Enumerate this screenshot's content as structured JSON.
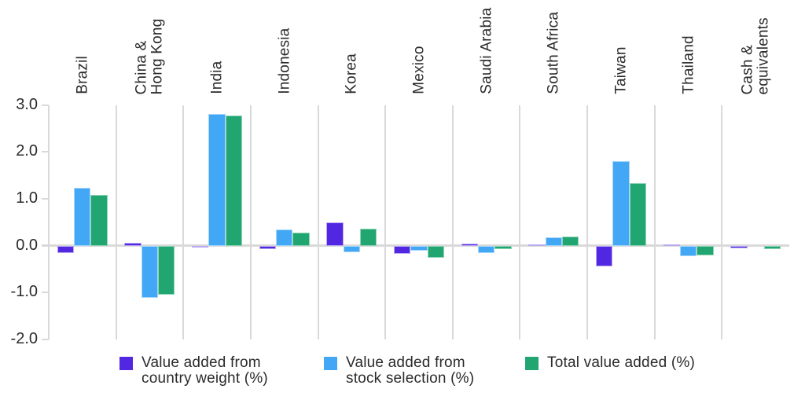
{
  "chart_data": {
    "type": "bar",
    "title": "",
    "xlabel": "",
    "ylabel": "",
    "categories": [
      "Brazil",
      "China &\nHong Kong",
      "India",
      "Indonesia",
      "Korea",
      "Mexico",
      "Saudi Arabia",
      "South Africa",
      "Taiwan",
      "Thailand",
      "Cash &\nequivalents"
    ],
    "series": [
      {
        "name": "Value added from\ncountry weight (%)",
        "color": "#5227e2",
        "edge_color": "#b9aaf2",
        "values": [
          -0.15,
          0.06,
          -0.03,
          -0.08,
          0.49,
          -0.18,
          0.05,
          0.03,
          -0.45,
          0.03,
          -0.06
        ]
      },
      {
        "name": "Value added from\nstock selection (%)",
        "color": "#42a7f5",
        "edge_color": "#a8d6fb",
        "values": [
          1.23,
          -1.11,
          2.81,
          0.34,
          -0.14,
          -0.11,
          -0.15,
          0.17,
          1.8,
          -0.22,
          0
        ]
      },
      {
        "name": "Total value added (%)",
        "color": "#21a571",
        "edge_color": "#90d4b4",
        "values": [
          1.08,
          -1.05,
          2.78,
          0.28,
          0.36,
          -0.26,
          -0.08,
          0.2,
          1.33,
          -0.2,
          -0.07
        ]
      }
    ],
    "ylim": [
      -2.0,
      3.0
    ],
    "yticks": [
      3.0,
      2.0,
      1.0,
      0.0,
      -1.0,
      -2.0
    ],
    "ytick_labels": [
      "3.0",
      "2.0",
      "1.0",
      "0.0",
      "-1.0",
      "-2.0"
    ],
    "grid": "vertical-category-separators",
    "legend_position": "bottom",
    "colors": {
      "gridline": "#d9d9d9",
      "zero_line": "#d9d9d9",
      "text": "#2b2b2b",
      "background": "#ffffff"
    }
  }
}
